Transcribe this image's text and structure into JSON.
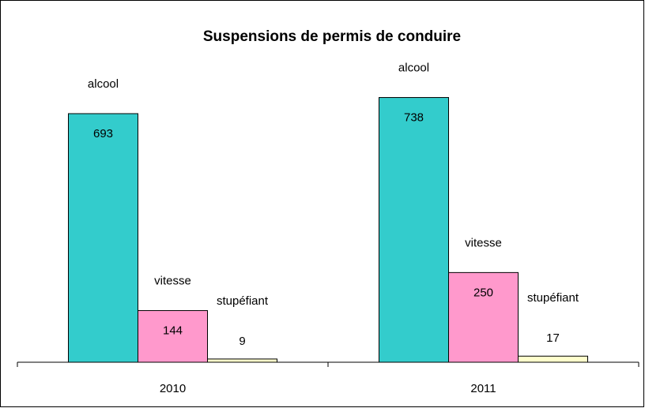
{
  "chart_data": {
    "type": "bar",
    "title": "Suspensions de permis de conduire",
    "categories": [
      "2010",
      "2011"
    ],
    "series": [
      {
        "name": "alcool",
        "color": "#33cccc",
        "values": [
          693,
          738
        ]
      },
      {
        "name": "vitesse",
        "color": "#ff99cc",
        "values": [
          144,
          250
        ]
      },
      {
        "name": "stupéfiant",
        "color": "#ffffcc",
        "values": [
          9,
          17
        ]
      }
    ]
  }
}
